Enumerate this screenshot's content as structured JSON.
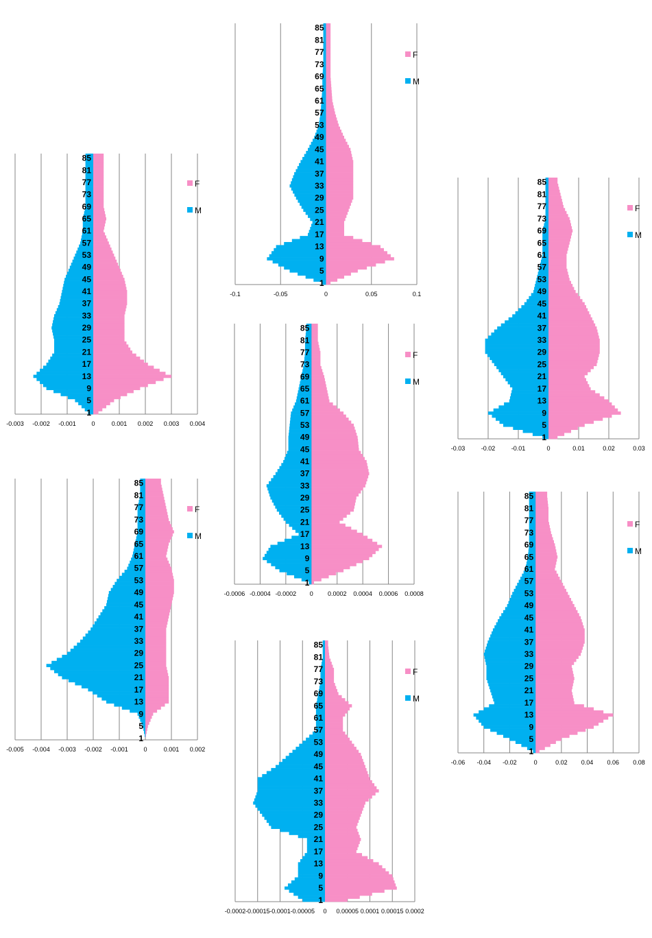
{
  "colors": {
    "female": "#f78fc6",
    "male": "#00b0f0",
    "grid": "#868686",
    "axis": "#868686"
  },
  "age_labels": [
    "85",
    "81",
    "77",
    "73",
    "69",
    "65",
    "61",
    "57",
    "53",
    "49",
    "45",
    "41",
    "37",
    "33",
    "29",
    "25",
    "21",
    "17",
    "13",
    "9",
    "5",
    "1"
  ],
  "legend": {
    "female": "F",
    "male": "M"
  },
  "chart_data": [
    {
      "id": "left-top",
      "type": "bar",
      "orientation": "horizontal-population-pyramid",
      "title": "",
      "xlim": [
        -0.003,
        0.004
      ],
      "xtick_labels": [
        "-0.003",
        "-0.002",
        "-0.001",
        "0",
        "0.001",
        "0.002",
        "0.003",
        "0.004"
      ],
      "series": [
        {
          "name": "F",
          "x": [
            1,
            5,
            9,
            13,
            17,
            21,
            25,
            29,
            33,
            37,
            41,
            45,
            49,
            53,
            57,
            61,
            65,
            69,
            73,
            77,
            81,
            85
          ],
          "values": [
            0.0002,
            0.0008,
            0.0018,
            0.003,
            0.0021,
            0.0015,
            0.0012,
            0.0012,
            0.0012,
            0.0013,
            0.0013,
            0.0012,
            0.001,
            0.0008,
            0.0006,
            0.0004,
            0.0005,
            0.0004,
            0.0004,
            0.0004,
            0.0004,
            0.0004
          ]
        },
        {
          "name": "M",
          "x": [
            1,
            5,
            9,
            13,
            17,
            21,
            25,
            29,
            33,
            37,
            41,
            45,
            49,
            53,
            57,
            61,
            65,
            69,
            73,
            77,
            81,
            85
          ],
          "values": [
            -0.0002,
            -0.0007,
            -0.0018,
            -0.0023,
            -0.0018,
            -0.0015,
            -0.0015,
            -0.0016,
            -0.0015,
            -0.0013,
            -0.0012,
            -0.0011,
            -0.0009,
            -0.0007,
            -0.0005,
            -0.0004,
            -0.0004,
            -0.0003,
            -0.0003,
            -0.0003,
            -0.0003,
            -0.0003
          ]
        }
      ]
    },
    {
      "id": "left-bottom",
      "type": "bar",
      "orientation": "horizontal-population-pyramid",
      "title": "",
      "xlim": [
        -0.005,
        0.002
      ],
      "xtick_labels": [
        "-0.005",
        "-0.004",
        "-0.003",
        "-0.002",
        "-0.001",
        "0",
        "0.001",
        "0.002"
      ],
      "series": [
        {
          "name": "F",
          "x": [
            1,
            5,
            9,
            13,
            17,
            21,
            25,
            29,
            33,
            37,
            41,
            45,
            49,
            53,
            57,
            61,
            65,
            69,
            73,
            77,
            81,
            85
          ],
          "values": [
            0,
            0.0001,
            0.0003,
            0.0009,
            0.0009,
            0.0009,
            0.0008,
            0.0008,
            0.0008,
            0.0008,
            0.0009,
            0.001,
            0.0011,
            0.0011,
            0.001,
            0.0008,
            0.0009,
            0.0011,
            0.0009,
            0.0008,
            0.0007,
            0.0006
          ]
        },
        {
          "name": "M",
          "x": [
            1,
            5,
            9,
            13,
            17,
            21,
            25,
            29,
            33,
            37,
            41,
            45,
            49,
            53,
            57,
            61,
            65,
            69,
            73,
            77,
            81,
            85
          ],
          "values": [
            0,
            -0.0001,
            -0.0003,
            -0.0015,
            -0.0022,
            -0.0032,
            -0.0038,
            -0.003,
            -0.0025,
            -0.0021,
            -0.0018,
            -0.0015,
            -0.0014,
            -0.0011,
            -0.0007,
            -0.0005,
            -0.0004,
            -0.0003,
            -0.0003,
            -0.0003,
            -0.0002,
            -0.0002
          ]
        }
      ]
    },
    {
      "id": "middle-top",
      "type": "bar",
      "orientation": "horizontal-population-pyramid",
      "title": "",
      "xlim": [
        -0.1,
        0.1
      ],
      "xtick_labels": [
        "-0.1",
        "-0.05",
        "0",
        "0.05",
        "0.1"
      ],
      "series": [
        {
          "name": "F",
          "x": [
            1,
            5,
            9,
            13,
            17,
            21,
            25,
            29,
            33,
            37,
            41,
            45,
            49,
            53,
            57,
            61,
            65,
            69,
            73,
            77,
            81,
            85
          ],
          "values": [
            0.005,
            0.035,
            0.075,
            0.06,
            0.02,
            0.02,
            0.025,
            0.03,
            0.03,
            0.03,
            0.03,
            0.027,
            0.02,
            0.014,
            0.01,
            0.007,
            0.006,
            0.005,
            0.005,
            0.005,
            0.005,
            0.005
          ]
        },
        {
          "name": "M",
          "x": [
            1,
            5,
            9,
            13,
            17,
            21,
            25,
            29,
            33,
            37,
            41,
            45,
            49,
            53,
            57,
            61,
            65,
            69,
            73,
            77,
            81,
            85
          ],
          "values": [
            -0.005,
            -0.04,
            -0.065,
            -0.055,
            -0.02,
            -0.015,
            -0.025,
            -0.033,
            -0.04,
            -0.035,
            -0.028,
            -0.02,
            -0.013,
            -0.008,
            -0.006,
            -0.005,
            -0.004,
            -0.004,
            -0.003,
            -0.003,
            -0.003,
            -0.003
          ]
        }
      ]
    },
    {
      "id": "middle-middle",
      "type": "bar",
      "orientation": "horizontal-population-pyramid",
      "title": "",
      "xlim": [
        -0.0006,
        0.0008
      ],
      "xtick_labels": [
        "-0.0006",
        "-0.0004",
        "-0.0002",
        "0",
        "0.0002",
        "0.0004",
        "0.0006",
        "0.0008"
      ],
      "series": [
        {
          "name": "F",
          "x": [
            1,
            5,
            9,
            13,
            17,
            21,
            25,
            29,
            33,
            37,
            41,
            45,
            49,
            53,
            57,
            61,
            65,
            69,
            73,
            77,
            81,
            85
          ],
          "values": [
            2e-05,
            0.00025,
            0.00045,
            0.00055,
            0.0004,
            0.00022,
            0.00033,
            0.00035,
            0.00042,
            0.00045,
            0.00043,
            0.00037,
            0.00036,
            0.00033,
            0.00025,
            0.00014,
            0.00012,
            0.0001,
            7e-05,
            7e-05,
            5e-05,
            5e-05
          ]
        },
        {
          "name": "M",
          "x": [
            1,
            5,
            9,
            13,
            17,
            21,
            25,
            29,
            33,
            37,
            41,
            45,
            49,
            53,
            57,
            61,
            65,
            69,
            73,
            77,
            81,
            85
          ],
          "values": [
            -2e-05,
            -0.00025,
            -0.00038,
            -0.00032,
            -0.0001,
            -0.0002,
            -0.00027,
            -0.00032,
            -0.00035,
            -0.00028,
            -0.00022,
            -0.00018,
            -0.00018,
            -0.00017,
            -0.00016,
            -0.00012,
            -0.0001,
            -8e-05,
            -6e-05,
            -5e-05,
            -5e-05,
            -4e-05
          ]
        }
      ]
    },
    {
      "id": "middle-bottom",
      "type": "bar",
      "orientation": "horizontal-population-pyramid",
      "title": "",
      "xlim": [
        -0.0002,
        0.0002
      ],
      "xtick_labels": [
        "-0.0002",
        "-0.00015",
        "-0.0001",
        "-0.00005",
        "0",
        "0.00005",
        "0.0001",
        "0.00015",
        "0.0002"
      ],
      "series": [
        {
          "name": "F",
          "x": [
            1,
            5,
            9,
            13,
            17,
            21,
            25,
            29,
            33,
            37,
            41,
            45,
            49,
            53,
            57,
            61,
            65,
            69,
            73,
            77,
            81,
            85
          ],
          "values": [
            5e-05,
            0.00016,
            0.00015,
            0.00012,
            7e-05,
            8e-05,
            7e-05,
            8e-05,
            9e-05,
            0.00012,
            0.0001,
            9e-05,
            8e-05,
            6e-05,
            4e-05,
            4e-05,
            6e-05,
            3e-05,
            2e-05,
            2e-05,
            1e-05,
            7e-06
          ]
        },
        {
          "name": "M",
          "x": [
            1,
            5,
            9,
            13,
            17,
            21,
            25,
            29,
            33,
            37,
            41,
            45,
            49,
            53,
            57,
            61,
            65,
            69,
            73,
            77,
            81,
            85
          ],
          "values": [
            -5e-05,
            -9e-05,
            -6e-05,
            -6e-05,
            -4e-05,
            -4e-05,
            -0.00012,
            -0.00014,
            -0.00016,
            -0.00015,
            -0.00015,
            -0.00011,
            -8e-05,
            -5e-05,
            -2e-05,
            -2e-05,
            -2e-05,
            -1.5e-05,
            -1e-05,
            -1e-05,
            -5e-06,
            -5e-06
          ]
        }
      ]
    },
    {
      "id": "right-top",
      "type": "bar",
      "orientation": "horizontal-population-pyramid",
      "title": "",
      "xlim": [
        -0.03,
        0.03
      ],
      "xtick_labels": [
        "-0.03",
        "-0.02",
        "-0.01",
        "0",
        "0.01",
        "0.02",
        "0.03"
      ],
      "series": [
        {
          "name": "F",
          "x": [
            1,
            5,
            9,
            13,
            17,
            21,
            25,
            29,
            33,
            37,
            41,
            45,
            49,
            53,
            57,
            61,
            65,
            69,
            73,
            77,
            81,
            85
          ],
          "values": [
            0.003,
            0.012,
            0.024,
            0.02,
            0.014,
            0.012,
            0.016,
            0.017,
            0.017,
            0.016,
            0.014,
            0.012,
            0.009,
            0.007,
            0.006,
            0.006,
            0.007,
            0.008,
            0.007,
            0.005,
            0.004,
            0.003
          ]
        },
        {
          "name": "M",
          "x": [
            1,
            5,
            9,
            13,
            17,
            21,
            25,
            29,
            33,
            37,
            41,
            45,
            49,
            53,
            57,
            61,
            65,
            69,
            73,
            77,
            81,
            85
          ],
          "values": [
            -0.002,
            -0.015,
            -0.02,
            -0.013,
            -0.012,
            -0.015,
            -0.018,
            -0.021,
            -0.021,
            -0.017,
            -0.012,
            -0.008,
            -0.005,
            -0.004,
            -0.003,
            -0.002,
            -0.002,
            -0.002,
            -0.001,
            -0.001,
            -0.001,
            -0.001
          ]
        }
      ]
    },
    {
      "id": "right-bottom",
      "type": "bar",
      "orientation": "horizontal-population-pyramid",
      "title": "",
      "xlim": [
        -0.06,
        0.08
      ],
      "xtick_labels": [
        "-0.06",
        "-0.04",
        "-0.02",
        "0",
        "0.02",
        "0.04",
        "0.06",
        "0.08"
      ],
      "series": [
        {
          "name": "F",
          "x": [
            1,
            5,
            9,
            13,
            17,
            21,
            25,
            29,
            33,
            37,
            41,
            45,
            49,
            53,
            57,
            61,
            65,
            69,
            73,
            77,
            81,
            85
          ],
          "values": [
            0.003,
            0.02,
            0.045,
            0.06,
            0.03,
            0.028,
            0.03,
            0.028,
            0.035,
            0.038,
            0.038,
            0.035,
            0.03,
            0.025,
            0.02,
            0.015,
            0.017,
            0.015,
            0.012,
            0.01,
            0.01,
            0.009
          ]
        },
        {
          "name": "M",
          "x": [
            1,
            5,
            9,
            13,
            17,
            21,
            25,
            29,
            33,
            37,
            41,
            45,
            49,
            53,
            57,
            61,
            65,
            69,
            73,
            77,
            81,
            85
          ],
          "values": [
            -0.002,
            -0.02,
            -0.04,
            -0.048,
            -0.032,
            -0.035,
            -0.038,
            -0.038,
            -0.04,
            -0.037,
            -0.033,
            -0.028,
            -0.022,
            -0.018,
            -0.013,
            -0.008,
            -0.006,
            -0.005,
            -0.005,
            -0.005,
            -0.005,
            -0.005
          ]
        }
      ]
    }
  ]
}
